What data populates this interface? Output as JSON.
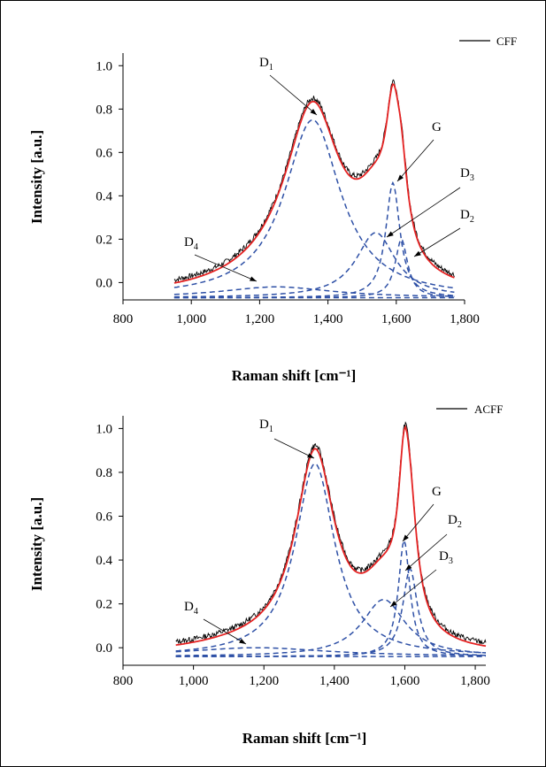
{
  "chart_data": [
    {
      "type": "line",
      "title": "",
      "xlabel": "Raman shift [cm⁻¹]",
      "ylabel": "Intensity [a.u.]",
      "xlim": [
        800,
        1800
      ],
      "ylim": [
        -0.08,
        1.05
      ],
      "xticks": [
        800,
        1000,
        1200,
        1400,
        1600,
        1800
      ],
      "xtick_labels": [
        "800",
        "1,000",
        "1,200",
        "1,400",
        "1,600",
        "1,800"
      ],
      "yticks": [
        0.0,
        0.2,
        0.4,
        0.6,
        0.8,
        1.0
      ],
      "ytick_labels": [
        "0.0",
        "0.2",
        "0.4",
        "0.6",
        "0.8",
        "1.0"
      ],
      "grid": false,
      "legend": {
        "placement": "top-right",
        "entries": [
          "CFF"
        ]
      },
      "colors": {
        "measured": "#000000",
        "fit": "#e52222",
        "components": "#2e50a6"
      },
      "x": [
        950,
        1000,
        1050,
        1100,
        1150,
        1200,
        1250,
        1300,
        1350,
        1380,
        1400,
        1450,
        1480,
        1500,
        1550,
        1580,
        1590,
        1600,
        1620,
        1650,
        1700,
        1750,
        1770
      ],
      "series": [
        {
          "name": "CFF",
          "role": "measured",
          "values": [
            0.01,
            0.04,
            0.08,
            0.13,
            0.2,
            0.3,
            0.45,
            0.62,
            0.77,
            0.76,
            0.7,
            0.54,
            0.53,
            0.56,
            0.75,
            0.95,
            0.99,
            0.92,
            0.62,
            0.3,
            0.1,
            0.03,
            0.01
          ]
        },
        {
          "name": "fit",
          "role": "fit",
          "values": [
            -0.01,
            0.03,
            0.07,
            0.12,
            0.19,
            0.29,
            0.44,
            0.61,
            0.76,
            0.75,
            0.69,
            0.54,
            0.53,
            0.56,
            0.75,
            0.94,
            0.98,
            0.91,
            0.61,
            0.29,
            0.09,
            0.02,
            0.01
          ]
        }
      ],
      "components": [
        {
          "name": "D1",
          "center": 1355,
          "height": 0.82,
          "width": 100,
          "offset": -0.07
        },
        {
          "name": "G",
          "center": 1590,
          "height": 0.53,
          "width": 25,
          "offset": -0.07
        },
        {
          "name": "D3",
          "center": 1540,
          "height": 0.3,
          "width": 70,
          "offset": -0.07
        },
        {
          "name": "D2",
          "center": 1615,
          "height": 0.27,
          "width": 22,
          "offset": -0.07
        },
        {
          "name": "D4",
          "center": 1250,
          "height": 0.05,
          "width": 200,
          "offset": -0.07
        }
      ],
      "labels": [
        {
          "text": "D",
          "sub": "1"
        },
        {
          "text": "G",
          "sub": ""
        },
        {
          "text": "D",
          "sub": "3"
        },
        {
          "text": "D",
          "sub": "2"
        },
        {
          "text": "D",
          "sub": "4"
        }
      ]
    },
    {
      "type": "line",
      "title": "",
      "xlabel": "Raman shift [cm⁻¹]",
      "ylabel": "Intensity [a.u.]",
      "xlim": [
        800,
        1830
      ],
      "ylim": [
        -0.08,
        1.05
      ],
      "xticks": [
        800,
        1000,
        1200,
        1400,
        1600,
        1800
      ],
      "xtick_labels": [
        "800",
        "1,000",
        "1,200",
        "1,400",
        "1,600",
        "1,800"
      ],
      "yticks": [
        0.0,
        0.2,
        0.4,
        0.6,
        0.8,
        1.0
      ],
      "ytick_labels": [
        "0.0",
        "0.2",
        "0.4",
        "0.6",
        "0.8",
        "1.0"
      ],
      "grid": false,
      "legend": {
        "placement": "top-right",
        "entries": [
          "ACFF"
        ]
      },
      "colors": {
        "measured": "#000000",
        "fit": "#e52222",
        "components": "#2e50a6"
      },
      "x": [
        950,
        1000,
        1050,
        1100,
        1150,
        1200,
        1250,
        1300,
        1340,
        1350,
        1370,
        1400,
        1450,
        1470,
        1500,
        1550,
        1590,
        1600,
        1620,
        1650,
        1700,
        1750,
        1800,
        1830
      ],
      "series": [
        {
          "name": "ACFF",
          "role": "measured",
          "values": [
            0.01,
            0.03,
            0.06,
            0.1,
            0.16,
            0.25,
            0.4,
            0.65,
            0.84,
            0.85,
            0.78,
            0.62,
            0.44,
            0.43,
            0.48,
            0.7,
            0.99,
            0.98,
            0.72,
            0.32,
            0.1,
            0.03,
            0.01,
            0.0
          ]
        },
        {
          "name": "fit",
          "role": "fit",
          "values": [
            0.0,
            0.02,
            0.05,
            0.09,
            0.15,
            0.24,
            0.39,
            0.64,
            0.83,
            0.84,
            0.77,
            0.61,
            0.43,
            0.42,
            0.47,
            0.69,
            0.98,
            0.97,
            0.71,
            0.31,
            0.09,
            0.02,
            0.0,
            -0.01
          ]
        }
      ],
      "components": [
        {
          "name": "D1",
          "center": 1345,
          "height": 0.88,
          "width": 68,
          "offset": -0.04
        },
        {
          "name": "G",
          "center": 1598,
          "height": 0.53,
          "width": 20,
          "offset": -0.04
        },
        {
          "name": "D2",
          "center": 1615,
          "height": 0.4,
          "width": 25,
          "offset": -0.04
        },
        {
          "name": "D3",
          "center": 1540,
          "height": 0.26,
          "width": 75,
          "offset": -0.04
        },
        {
          "name": "D4",
          "center": 1180,
          "height": 0.04,
          "width": 250,
          "offset": -0.04
        }
      ],
      "labels": [
        {
          "text": "D",
          "sub": "1"
        },
        {
          "text": "G",
          "sub": ""
        },
        {
          "text": "D",
          "sub": "2"
        },
        {
          "text": "D",
          "sub": "3"
        },
        {
          "text": "D",
          "sub": "4"
        }
      ]
    }
  ]
}
